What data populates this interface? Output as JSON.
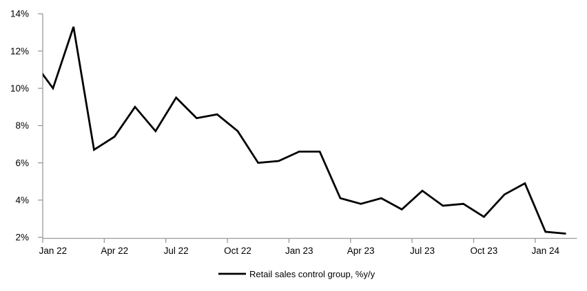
{
  "chart_data": {
    "type": "line",
    "title": "",
    "xlabel": "",
    "ylabel": "",
    "categories": [
      "Jan 22",
      "Feb 22",
      "Mar 22",
      "Apr 22",
      "May 22",
      "Jun 22",
      "Jul 22",
      "Aug 22",
      "Sep 22",
      "Oct 22",
      "Nov 22",
      "Dec 22",
      "Jan 23",
      "Feb 23",
      "Mar 23",
      "Apr 23",
      "May 23",
      "Jun 23",
      "Jul 23",
      "Aug 23",
      "Sep 23",
      "Oct 23",
      "Nov 23",
      "Dec 23",
      "Jan 24",
      "Feb 24"
    ],
    "series": [
      {
        "name": "Retail sales control group, %y/y",
        "values": [
          10.0,
          13.3,
          6.7,
          7.4,
          9.0,
          7.7,
          9.5,
          8.4,
          8.6,
          7.7,
          6.0,
          6.1,
          6.6,
          6.6,
          4.1,
          3.8,
          4.1,
          3.5,
          4.5,
          3.7,
          3.8,
          3.1,
          4.3,
          4.9,
          2.3,
          2.2
        ],
        "clipped_lead_in": {
          "category": "Dec 21",
          "value": 11.5
        }
      }
    ],
    "x_tick_labels": [
      "Jan 22",
      "Apr 22",
      "Jul 22",
      "Oct 22",
      "Jan 23",
      "Apr 23",
      "Jul 23",
      "Oct 23",
      "Jan 24"
    ],
    "x_tick_interval_months": 3,
    "y_tick_labels": [
      "14%",
      "12%",
      "10%",
      "8%",
      "6%",
      "4%",
      "2%"
    ],
    "y_tick_values": [
      14,
      12,
      10,
      8,
      6,
      4,
      2
    ],
    "ylim": [
      2,
      14
    ],
    "grid": false,
    "legend": {
      "position": "bottom-center",
      "label": "Retail sales control group, %y/y"
    },
    "colors": {
      "line": "#000000",
      "axis": "#999999",
      "text": "#000000",
      "background": "#ffffff"
    }
  }
}
